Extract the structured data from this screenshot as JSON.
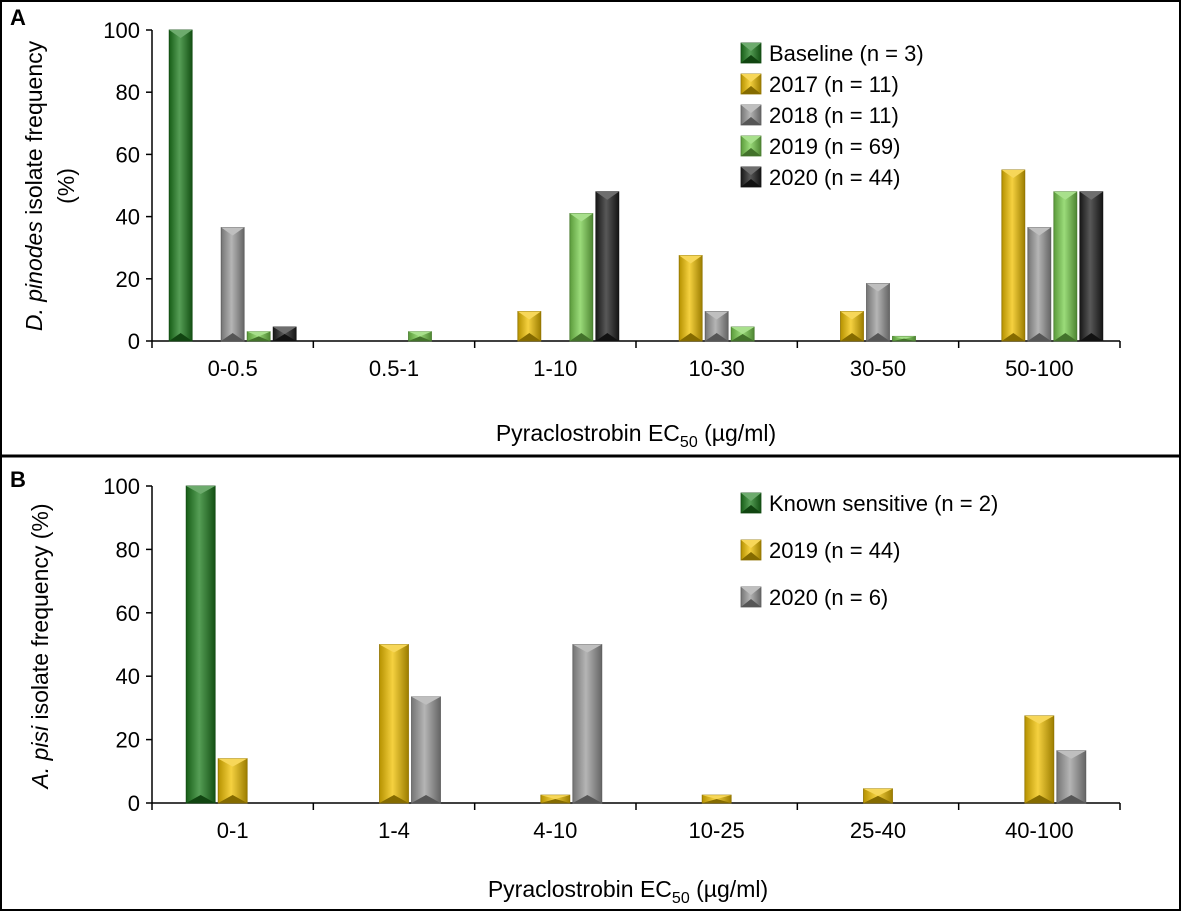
{
  "chart_data": [
    {
      "type": "bar",
      "panel_label": "A",
      "xlabel_main": "Pyraclostrobin EC",
      "xlabel_sub": "50",
      "xlabel_unit": " (µg/ml)",
      "ylabel_italic": "D. pinodes",
      "ylabel_rest": " isolate frequency",
      "ylabel_line2": "(%)",
      "ylim": [
        0,
        100
      ],
      "yticks": [
        "0",
        "20",
        "40",
        "60",
        "80",
        "100"
      ],
      "categories": [
        "0-0.5",
        "0.5-1",
        "1-10",
        "10-30",
        "30-50",
        "50-100"
      ],
      "legend_position": "top-right",
      "series": [
        {
          "name": "Baseline (n = 3)",
          "color": "#1e7d1e",
          "values": [
            100,
            0,
            0,
            0,
            0,
            0
          ]
        },
        {
          "name": "2017 (n = 11)",
          "color": "#f2c200",
          "values": [
            0,
            0,
            9.5,
            27.5,
            9.5,
            55
          ]
        },
        {
          "name": "2018 (n = 11)",
          "color": "#9c9c9c",
          "values": [
            36.5,
            0,
            0,
            9.5,
            18.5,
            36.5
          ]
        },
        {
          "name": "2019 (n = 69)",
          "color": "#79cf4e",
          "values": [
            3,
            3,
            41,
            4.5,
            1.5,
            48
          ]
        },
        {
          "name": "2020 (n = 44)",
          "color": "#202020",
          "values": [
            4.5,
            0,
            48,
            0,
            0,
            48
          ]
        }
      ]
    },
    {
      "type": "bar",
      "panel_label": "B",
      "xlabel_main": "Pyraclostrobin EC",
      "xlabel_sub": "50",
      "xlabel_unit": " (µg/ml)",
      "ylabel_italic": "A. pisi",
      "ylabel_rest": " isolate frequency (%)",
      "ylabel_line2": "",
      "ylim": [
        0,
        100
      ],
      "yticks": [
        "0",
        "20",
        "40",
        "60",
        "80",
        "100"
      ],
      "categories": [
        "0-1",
        "1-4",
        "4-10",
        "10-25",
        "25-40",
        "40-100"
      ],
      "legend_position": "top-right",
      "series": [
        {
          "name": "Known sensitive (n = 2)",
          "color": "#1e7d1e",
          "values": [
            100,
            0,
            0,
            0,
            0,
            0
          ]
        },
        {
          "name": "2019 (n = 44)",
          "color": "#f2c200",
          "values": [
            14,
            50,
            2.5,
            2.5,
            4.5,
            27.5
          ]
        },
        {
          "name": "2020 (n = 6)",
          "color": "#9c9c9c",
          "values": [
            0,
            33.5,
            50,
            0,
            0,
            16.5
          ]
        }
      ]
    }
  ]
}
